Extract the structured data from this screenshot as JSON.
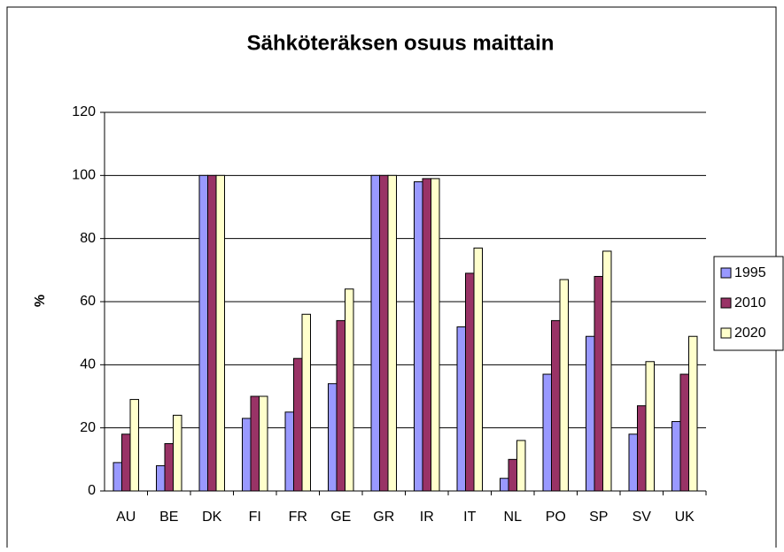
{
  "chart_data": {
    "type": "bar",
    "title": "Sähköteräksen osuus maittain",
    "ylabel": "%",
    "categories": [
      "AU",
      "BE",
      "DK",
      "FI",
      "FR",
      "GE",
      "GR",
      "IR",
      "IT",
      "NL",
      "PO",
      "SP",
      "SV",
      "UK"
    ],
    "series": [
      {
        "name": "1995",
        "color": "#9999ff",
        "values": [
          9,
          8,
          100,
          23,
          25,
          34,
          100,
          98,
          52,
          4,
          37,
          49,
          18,
          22
        ]
      },
      {
        "name": "2010",
        "color": "#993366",
        "values": [
          18,
          15,
          100,
          30,
          42,
          54,
          100,
          99,
          69,
          10,
          54,
          68,
          27,
          37
        ]
      },
      {
        "name": "2020",
        "color": "#ffffcc",
        "values": [
          29,
          24,
          100,
          30,
          56,
          64,
          100,
          99,
          77,
          16,
          67,
          76,
          41,
          49
        ]
      }
    ],
    "ylim": [
      0,
      120
    ],
    "yticks": [
      0,
      20,
      40,
      60,
      80,
      100,
      120
    ],
    "grid": true,
    "legend": "right"
  }
}
